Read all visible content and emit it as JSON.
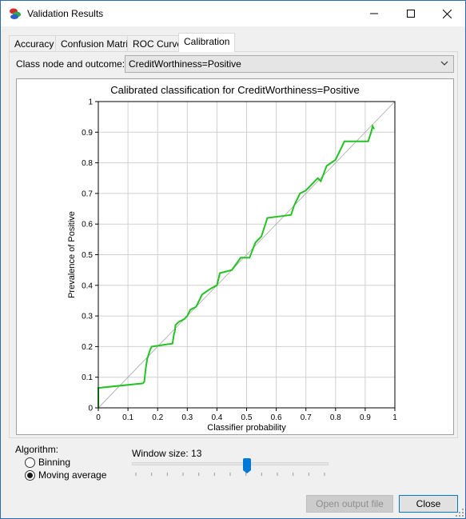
{
  "window": {
    "title": "Validation Results"
  },
  "tabs": [
    "Accuracy",
    "Confusion Matrix",
    "ROC Curve",
    "Calibration"
  ],
  "active_tab": "Calibration",
  "class_node": {
    "label": "Class node and outcome:",
    "value": "CreditWorthiness=Positive"
  },
  "algorithm": {
    "label": "Algorithm:",
    "options": [
      "Binning",
      "Moving average"
    ],
    "selected": "Moving average"
  },
  "window_size": {
    "label": "Window size: 13",
    "value": 13,
    "slider_fraction": 0.59
  },
  "buttons": {
    "open_output": "Open output file",
    "close": "Close"
  },
  "colors": {
    "curve": "#22c322",
    "thumb": "#0078d7",
    "diagonal": "#a8a8a8"
  },
  "chart_data": {
    "type": "line",
    "title": "Calibrated classification for CreditWorthiness=Positive",
    "xlabel": "Classifier probability",
    "ylabel": "Prevalence of Positive",
    "xlim": [
      0,
      1
    ],
    "ylim": [
      0,
      1
    ],
    "x_ticks": [
      "0",
      "0.1",
      "0.2",
      "0.3",
      "0.4",
      "0.5",
      "0.6",
      "0.7",
      "0.8",
      "0.9",
      "1"
    ],
    "y_ticks": [
      "0",
      "0.1",
      "0.2",
      "0.3",
      "0.4",
      "0.5",
      "0.6",
      "0.7",
      "0.8",
      "0.9",
      "1"
    ],
    "grid": true,
    "series": [
      {
        "points": [
          [
            0.0,
            0.0
          ],
          [
            0.0,
            0.065
          ],
          [
            0.15,
            0.08
          ],
          [
            0.155,
            0.085
          ],
          [
            0.16,
            0.13
          ],
          [
            0.165,
            0.16
          ],
          [
            0.175,
            0.19
          ],
          [
            0.18,
            0.2
          ],
          [
            0.25,
            0.21
          ],
          [
            0.255,
            0.24
          ],
          [
            0.258,
            0.25
          ],
          [
            0.26,
            0.27
          ],
          [
            0.27,
            0.28
          ],
          [
            0.29,
            0.29
          ],
          [
            0.3,
            0.3
          ],
          [
            0.31,
            0.32
          ],
          [
            0.33,
            0.33
          ],
          [
            0.35,
            0.37
          ],
          [
            0.38,
            0.39
          ],
          [
            0.4,
            0.4
          ],
          [
            0.41,
            0.44
          ],
          [
            0.45,
            0.45
          ],
          [
            0.48,
            0.49
          ],
          [
            0.51,
            0.49
          ],
          [
            0.53,
            0.54
          ],
          [
            0.55,
            0.56
          ],
          [
            0.56,
            0.59
          ],
          [
            0.57,
            0.62
          ],
          [
            0.65,
            0.63
          ],
          [
            0.66,
            0.66
          ],
          [
            0.68,
            0.7
          ],
          [
            0.7,
            0.71
          ],
          [
            0.72,
            0.73
          ],
          [
            0.74,
            0.75
          ],
          [
            0.75,
            0.74
          ],
          [
            0.77,
            0.79
          ],
          [
            0.8,
            0.81
          ],
          [
            0.83,
            0.87
          ],
          [
            0.91,
            0.87
          ],
          [
            0.92,
            0.9
          ],
          [
            0.925,
            0.92
          ],
          [
            0.93,
            0.91
          ]
        ]
      }
    ],
    "reference_line": [
      [
        0,
        0
      ],
      [
        1,
        1
      ]
    ]
  }
}
